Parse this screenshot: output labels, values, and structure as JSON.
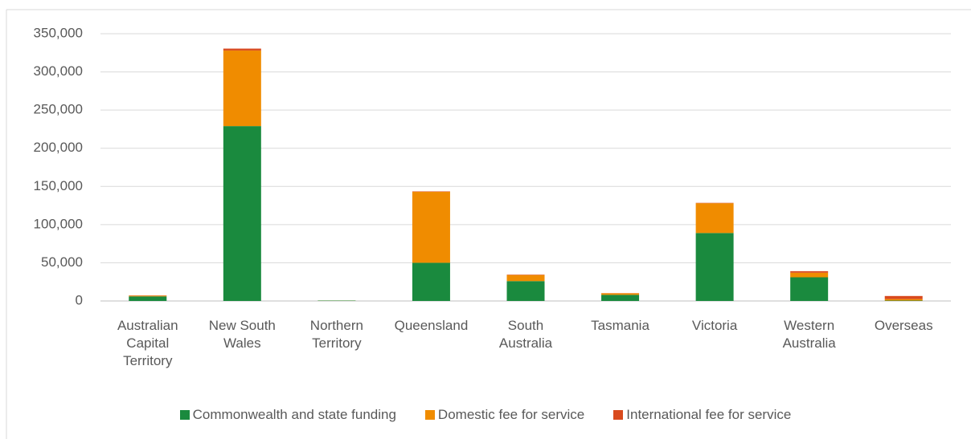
{
  "chart_data": {
    "type": "stacked_bar",
    "categories": [
      "Australian Capital Territory",
      "New South Wales",
      "Northern Territory",
      "Queensland",
      "South Australia",
      "Tasmania",
      "Victoria",
      "Western Australia",
      "Overseas"
    ],
    "series": [
      {
        "name": "Commonwealth and state funding",
        "color": "#1a8a3e",
        "values": [
          6000,
          229000,
          500,
          50000,
          26000,
          8000,
          89000,
          31000,
          500
        ]
      },
      {
        "name": "Domestic fee for service",
        "color": "#f08c00",
        "values": [
          1000,
          99000,
          100,
          93000,
          8000,
          2000,
          39000,
          6000,
          2000
        ]
      },
      {
        "name": "International fee for service",
        "color": "#d94a1e",
        "values": [
          300,
          2500,
          0,
          500,
          500,
          200,
          500,
          2000,
          4000
        ]
      }
    ],
    "ylim": [
      0,
      350000
    ],
    "yticks": [
      0,
      {
        "value": 50000,
        "label": "50,000"
      },
      {
        "value": 100000,
        "label": "100,000"
      },
      {
        "value": 150000,
        "label": "150,000"
      },
      {
        "value": 200000,
        "label": "200,000"
      },
      {
        "value": 250000,
        "label": "250,000"
      },
      {
        "value": 300000,
        "label": "300,000"
      },
      {
        "value": 350000,
        "label": "350,000"
      }
    ],
    "grid": true,
    "legend": "bottom"
  }
}
